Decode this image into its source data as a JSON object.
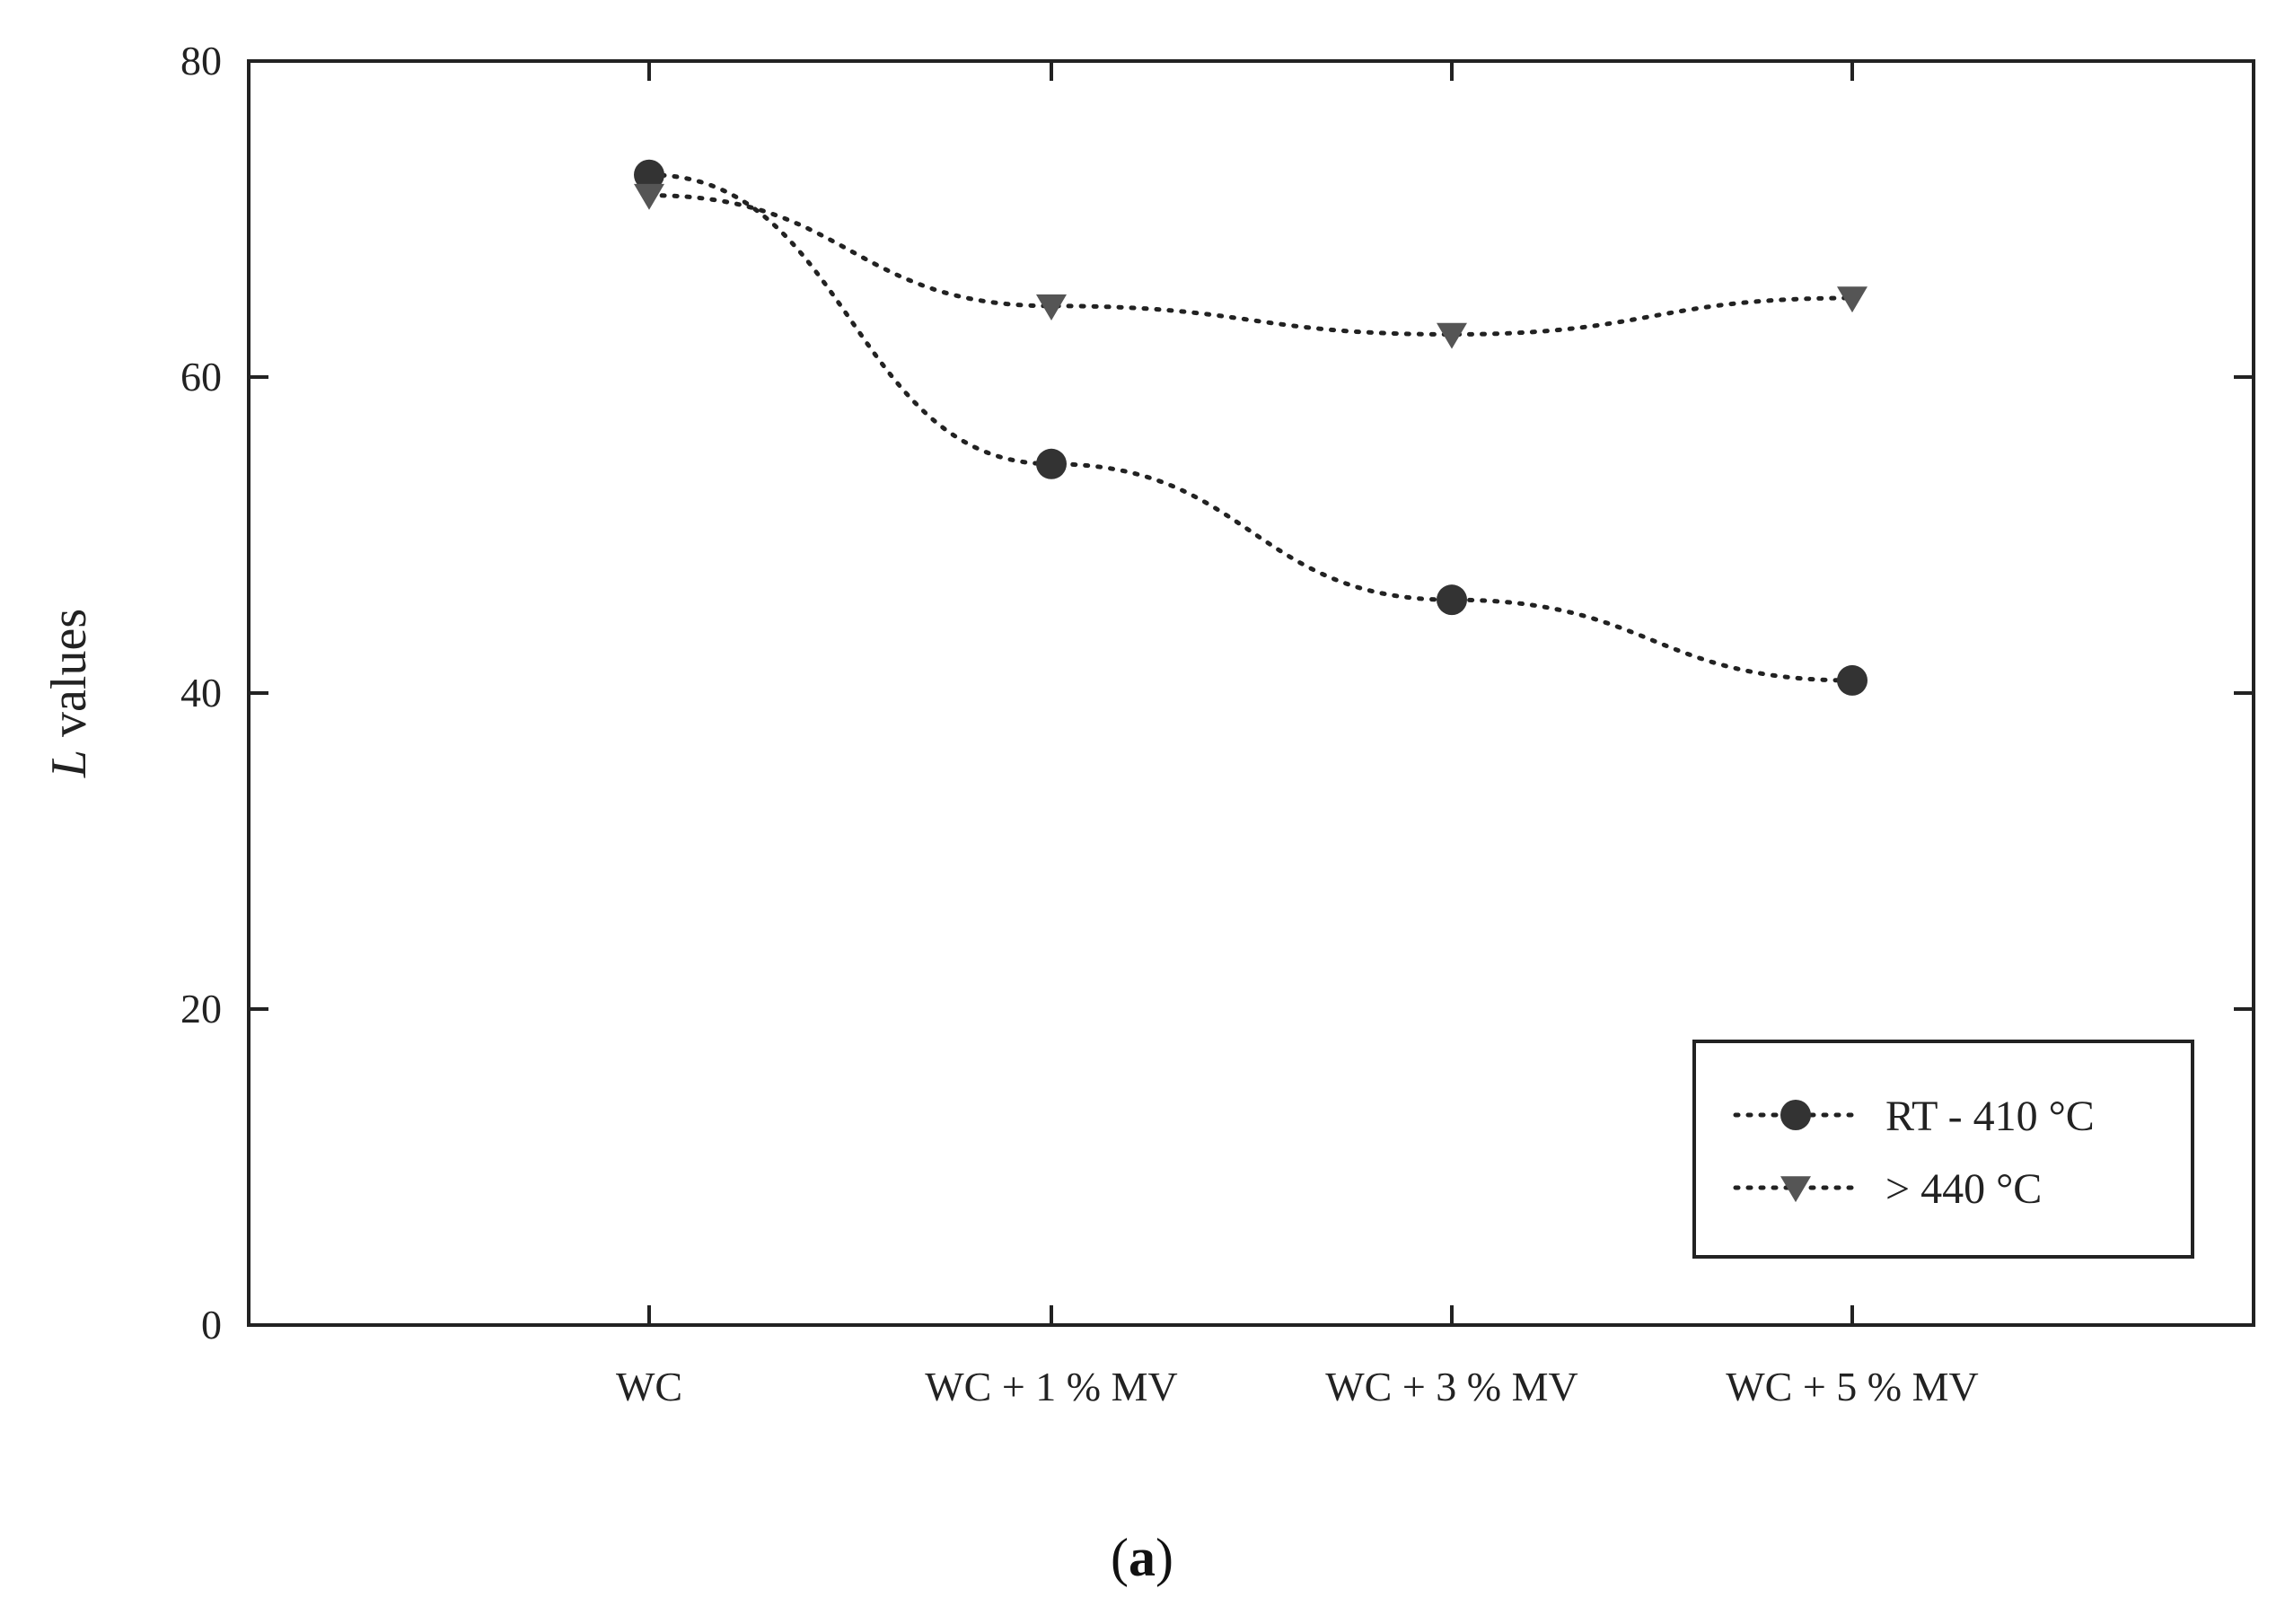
{
  "chart_data": {
    "type": "line",
    "title": "",
    "xlabel": "",
    "ylabel_italic": "L",
    "ylabel_rest": " values",
    "categories": [
      "WC",
      "WC + 1 % MV",
      "WC + 3 % MV",
      "WC + 5 % MV"
    ],
    "ylim": [
      0,
      80
    ],
    "yticks": [
      0,
      20,
      40,
      60,
      80
    ],
    "grid": false,
    "legend_position": "bottom-right",
    "series": [
      {
        "name": "RT - 410",
        "unit": "°C",
        "marker": "circle",
        "line_style": "dotted",
        "color": "#333333",
        "values": [
          72.8,
          54.5,
          45.9,
          40.8
        ]
      },
      {
        "name": "> 440",
        "unit": "°C",
        "marker": "triangle-down",
        "line_style": "dotted",
        "color": "#555555",
        "values": [
          71.5,
          64.5,
          62.7,
          65.0
        ]
      }
    ],
    "panel_label": "a"
  }
}
